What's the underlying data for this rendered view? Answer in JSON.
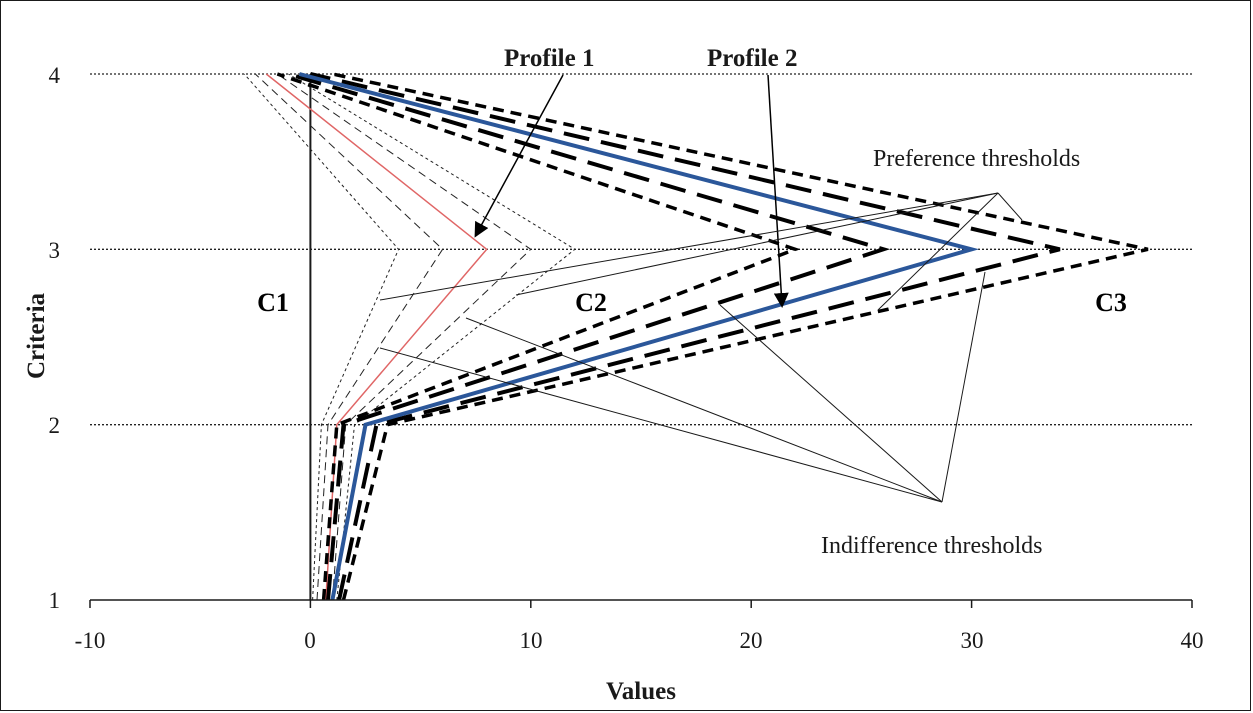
{
  "chart_data": {
    "type": "line",
    "xlabel": "Values",
    "ylabel": "Criteria",
    "xlim": [
      -10,
      40
    ],
    "ylim": [
      1,
      4
    ],
    "x_ticks": [
      "-10",
      "0",
      "10",
      "20",
      "30",
      "40"
    ],
    "y_ticks": [
      "1",
      "2",
      "3",
      "4"
    ],
    "grid": "horizontal dotted lines at criteria 2, 3, 4",
    "colors": {
      "profile": "#2b579a",
      "threshold": "#000000",
      "profile1_red": "#e06666",
      "region_label": "#2e5488"
    },
    "series": [
      {
        "style": "c1-boundary-solid",
        "points": [
          [
            0,
            1
          ],
          [
            0,
            2
          ],
          [
            0,
            3
          ],
          [
            0,
            4
          ]
        ]
      },
      {
        "style": "p1-indiff-lower-dash",
        "points": [
          [
            0.3,
            1
          ],
          [
            0.8,
            2
          ],
          [
            6,
            3
          ],
          [
            -2.5,
            4
          ]
        ]
      },
      {
        "style": "p1-indiff-upper-dash",
        "points": [
          [
            1,
            1
          ],
          [
            1.6,
            2
          ],
          [
            10,
            3
          ],
          [
            -1.5,
            4
          ]
        ]
      },
      {
        "style": "p1-pref-lower-dot",
        "points": [
          [
            0.1,
            1
          ],
          [
            0.5,
            2
          ],
          [
            4,
            3
          ],
          [
            -3,
            4
          ]
        ]
      },
      {
        "style": "p1-pref-upper-dot",
        "points": [
          [
            1.2,
            1
          ],
          [
            2,
            2
          ],
          [
            12,
            3
          ],
          [
            -1,
            4
          ]
        ]
      },
      {
        "style": "profile1-red",
        "points": [
          [
            0.7,
            1
          ],
          [
            1.2,
            2
          ],
          [
            8,
            3
          ],
          [
            -2,
            4
          ]
        ]
      },
      {
        "style": "p2-indiff-lower-dash",
        "points": [
          [
            0.8,
            1
          ],
          [
            1.5,
            2
          ],
          [
            26,
            3
          ],
          [
            -1,
            4
          ]
        ]
      },
      {
        "style": "p2-indiff-upper-dash",
        "points": [
          [
            1.3,
            1
          ],
          [
            3,
            2
          ],
          [
            34,
            3
          ],
          [
            0,
            4
          ]
        ]
      },
      {
        "style": "p2-pref-lower-dot",
        "points": [
          [
            0.6,
            1
          ],
          [
            1.2,
            2
          ],
          [
            22,
            3
          ],
          [
            -1.5,
            4
          ]
        ]
      },
      {
        "style": "p2-pref-upper-dot",
        "points": [
          [
            1.5,
            1
          ],
          [
            3.5,
            2
          ],
          [
            38,
            3
          ],
          [
            1,
            4
          ]
        ]
      },
      {
        "style": "profile2-blue",
        "points": [
          [
            1,
            1
          ],
          [
            2.5,
            2
          ],
          [
            30,
            3
          ],
          [
            -0.5,
            4
          ]
        ]
      }
    ],
    "regions": [
      "C1",
      "C2",
      "C3"
    ],
    "profile_labels": [
      "Profile 1",
      "Profile 2"
    ],
    "annotations": [
      "Preference thresholds",
      "Indifference thresholds"
    ]
  }
}
